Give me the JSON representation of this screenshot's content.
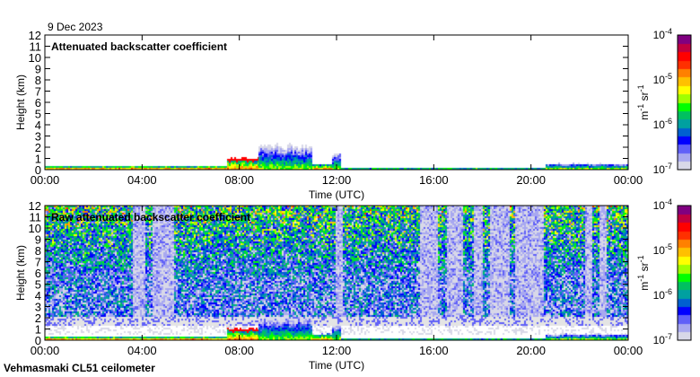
{
  "header": {
    "date": "9 Dec 2023"
  },
  "footer": {
    "station": "Vehmasmaki CL51 ceilometer"
  },
  "chart_data": [
    {
      "type": "heatmap",
      "title": "Attenuated backscatter coefficient",
      "xlabel": "Time (UTC)",
      "ylabel": "Height (km)",
      "xlim": [
        0,
        24
      ],
      "ylim": [
        0,
        12
      ],
      "x_ticks": [
        "00:00",
        "04:00",
        "08:00",
        "12:00",
        "16:00",
        "20:00",
        "00:00"
      ],
      "y_ticks": [
        "0",
        "1",
        "2",
        "3",
        "4",
        "5",
        "6",
        "7",
        "8",
        "9",
        "10",
        "11",
        "12"
      ],
      "layers": [
        {
          "t0": 0,
          "t1": 7.5,
          "top_km": 0.4,
          "peak_log10": -4.3
        },
        {
          "t0": 7.5,
          "t1": 8.8,
          "top_km": 1.1,
          "peak_log10": -4.6
        },
        {
          "t0": 8.8,
          "t1": 11.0,
          "top_km": 2.2,
          "peak_log10": -5.3
        },
        {
          "t0": 11.0,
          "t1": 11.8,
          "top_km": 0.6,
          "peak_log10": -4.5
        },
        {
          "t0": 11.8,
          "t1": 12.2,
          "top_km": 1.5,
          "peak_log10": -5.2
        },
        {
          "t0": 12.2,
          "t1": 20.6,
          "top_km": 0.2,
          "peak_log10": -4.4
        },
        {
          "t0": 20.6,
          "t1": 24,
          "top_km": 0.6,
          "peak_log10": -5.0
        }
      ]
    },
    {
      "type": "heatmap",
      "title": "Raw attenuated backscatter coefficient",
      "xlabel": "Time (UTC)",
      "ylabel": "Height (km)",
      "xlim": [
        0,
        24
      ],
      "ylim": [
        0,
        12
      ],
      "x_ticks": [
        "00:00",
        "04:00",
        "08:00",
        "12:00",
        "16:00",
        "20:00",
        "00:00"
      ],
      "y_ticks": [
        "0",
        "1",
        "2",
        "3",
        "4",
        "5",
        "6",
        "7",
        "8",
        "9",
        "10",
        "11",
        "12"
      ],
      "clear_gaps_hours": [
        [
          3.6,
          4.1
        ],
        [
          4.4,
          5.3
        ],
        [
          11.9,
          12.2
        ],
        [
          15.4,
          16.1
        ],
        [
          16.5,
          17.2
        ],
        [
          17.6,
          18.0
        ],
        [
          18.3,
          19.1
        ],
        [
          19.3,
          20.5
        ],
        [
          22.2,
          22.5
        ],
        [
          22.8,
          23.1
        ]
      ],
      "noise_band_km": [
        1.4,
        2.1
      ]
    }
  ],
  "colorbar": {
    "unit": "m-1 sr-1",
    "unit_base1": "m",
    "unit_exp1": "-1",
    "unit_base2": " sr",
    "unit_exp2": "-1",
    "labels": [
      {
        "base": "10",
        "exp": "-4"
      },
      {
        "base": "10",
        "exp": "-5"
      },
      {
        "base": "10",
        "exp": "-6"
      },
      {
        "base": "10",
        "exp": "-7"
      }
    ],
    "range_log10": [
      -7,
      -4
    ],
    "colors": [
      "#d8d8e8",
      "#a8a8f0",
      "#6060f8",
      "#0000ff",
      "#0060d0",
      "#00a0a0",
      "#00c060",
      "#00ff00",
      "#a0ff00",
      "#ffff00",
      "#ffc000",
      "#ff8000",
      "#ff3000",
      "#ff0000",
      "#c00040",
      "#800080"
    ]
  }
}
